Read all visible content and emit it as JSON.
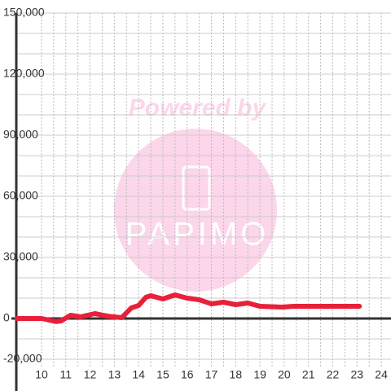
{
  "chart_data": {
    "type": "line",
    "x": [
      9.0,
      10.0,
      10.6,
      10.8,
      11.2,
      11.6,
      12.2,
      12.7,
      13.3,
      13.7,
      14.0,
      14.3,
      14.5,
      15.0,
      15.5,
      16.0,
      16.5,
      17.0,
      17.5,
      18.0,
      18.5,
      19.0,
      19.9,
      20.4,
      23.1
    ],
    "series": [
      {
        "color": "#e8203a",
        "values": [
          0,
          0,
          -1500,
          -1200,
          1600,
          800,
          2400,
          1200,
          400,
          5200,
          6400,
          10400,
          11200,
          9600,
          11600,
          10000,
          9200,
          7200,
          8000,
          6800,
          7600,
          6000,
          5600,
          6000,
          6000
        ]
      }
    ],
    "xlim": [
      8.96,
      24.4
    ],
    "ylim": [
      -20000,
      150000
    ],
    "xticks": [
      10,
      11,
      12,
      13,
      14,
      15,
      16,
      17,
      18,
      19,
      20,
      21,
      22,
      23,
      24
    ],
    "x_minor_gridlines": [
      10.5,
      11.5,
      12.5,
      13.5,
      14.5,
      15.5,
      16.5,
      17.5,
      18.5,
      19.5,
      20.5,
      21.5,
      22.5,
      23.5
    ],
    "yticks": [
      {
        "value": -20000,
        "label": "-20,000"
      },
      0,
      {
        "value": 30000,
        "label": "30,000"
      },
      {
        "value": 60000,
        "label": "60,000"
      },
      {
        "value": 90000,
        "label": "90,000"
      },
      {
        "value": 120000,
        "label": "120,000"
      },
      {
        "value": 150000,
        "label": "150,000"
      }
    ],
    "y_gridlines": [
      -10000,
      10000,
      20000,
      40000,
      50000,
      70000,
      80000,
      100000,
      110000,
      130000,
      140000
    ],
    "grid": true
  },
  "watermark": {
    "line1": "Powered by",
    "line2": "PAPIMO"
  }
}
